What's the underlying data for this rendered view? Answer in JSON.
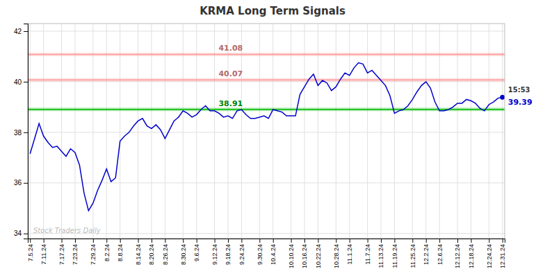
{
  "chart_data": {
    "type": "line",
    "title": "KRMA Long Term Signals",
    "categories": [
      "7.5.24",
      null,
      null,
      "7.11.24",
      null,
      null,
      null,
      "7.17.24",
      null,
      null,
      "7.23.24",
      null,
      null,
      null,
      "7.29.24",
      null,
      null,
      "8.2.24",
      null,
      null,
      "8.8.24",
      null,
      null,
      null,
      "8.14.24",
      null,
      null,
      "8.20.24",
      null,
      null,
      "8.26.24",
      null,
      null,
      null,
      "8.30.24",
      null,
      null,
      "9.6.24",
      null,
      null,
      null,
      "9.12.24",
      null,
      null,
      "9.18.24",
      null,
      null,
      "9.24.24",
      null,
      null,
      null,
      "9.30.24",
      null,
      null,
      "10.4.24",
      null,
      null,
      null,
      "10.10.24",
      null,
      null,
      "10.16.24",
      null,
      null,
      "10.22.24",
      null,
      null,
      null,
      "10.28.24",
      null,
      null,
      "11.1.24",
      null,
      null,
      null,
      "11.7.24",
      null,
      null,
      "11.13.24",
      null,
      null,
      "11.19.24",
      null,
      null,
      null,
      "11.25.24",
      null,
      null,
      "12.2.24",
      null,
      null,
      "12.6.24",
      null,
      null,
      null,
      "12.12.24",
      null,
      null,
      "12.18.24",
      null,
      null,
      null,
      "12.24.24",
      null,
      null,
      "12.31.24"
    ],
    "values": [
      37.15,
      37.75,
      38.35,
      37.85,
      37.6,
      37.4,
      37.45,
      37.25,
      37.05,
      37.35,
      37.2,
      36.7,
      35.6,
      34.9,
      35.2,
      35.7,
      36.1,
      36.55,
      36.05,
      36.2,
      37.65,
      37.85,
      38.0,
      38.25,
      38.45,
      38.55,
      38.25,
      38.15,
      38.3,
      38.1,
      37.75,
      38.1,
      38.45,
      38.6,
      38.85,
      38.75,
      38.6,
      38.7,
      38.9,
      39.05,
      38.85,
      38.85,
      38.75,
      38.6,
      38.65,
      38.55,
      38.85,
      38.9,
      38.7,
      38.55,
      38.55,
      38.6,
      38.65,
      38.55,
      38.9,
      38.85,
      38.8,
      38.65,
      38.65,
      38.65,
      39.5,
      39.8,
      40.1,
      40.3,
      39.85,
      40.05,
      39.95,
      39.65,
      39.8,
      40.1,
      40.35,
      40.25,
      40.55,
      40.75,
      40.7,
      40.35,
      40.45,
      40.25,
      40.05,
      39.85,
      39.45,
      38.75,
      38.85,
      38.9,
      39.05,
      39.3,
      39.6,
      39.85,
      40.0,
      39.75,
      39.2,
      38.85,
      38.85,
      38.9,
      39.0,
      39.15,
      39.15,
      39.3,
      39.25,
      39.15,
      38.95,
      38.85,
      39.1,
      39.2,
      39.35,
      39.39
    ],
    "color": "#0000cc",
    "ylim": [
      33.8,
      42.3
    ],
    "yticks": [
      34,
      36,
      38,
      40,
      42
    ],
    "grid": true,
    "reference_lines": [
      {
        "value": 41.08,
        "label": "41.08",
        "color": "#ff9999"
      },
      {
        "value": 40.07,
        "label": "40.07",
        "color": "#ff9999"
      },
      {
        "value": 38.91,
        "label": "38.91",
        "color": "#00bb00"
      }
    ],
    "annotations": [
      {
        "text": "15:53",
        "color": "#333333"
      },
      {
        "text": "39.39",
        "value": 39.39,
        "color": "#0000cc"
      },
      {
        "text": "Stock Traders Daily",
        "color": "#bbbbbb"
      }
    ]
  }
}
